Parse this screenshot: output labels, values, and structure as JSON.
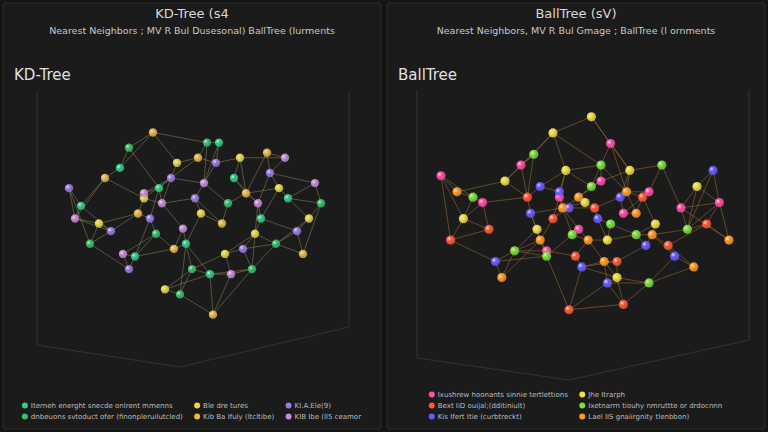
{
  "chart_data": [
    {
      "type": "scatter",
      "title": "KD-Tree (s4",
      "subtitle": "Nearest Neighbors ; MV R Bul Dusesonal) BallTree (Iurments",
      "annotations": [
        "KD-Tree"
      ],
      "xlim": [
        0,
        100
      ],
      "ylim": [
        0,
        100
      ],
      "tick_labels": false,
      "grid": false,
      "legend": "bottom",
      "marker": "circle",
      "series": [
        {
          "name": "Iterneh energht snecde onlrent mmenns",
          "color": "#35c98a",
          "x": [
            12,
            25,
            38,
            47,
            55,
            63,
            72,
            81,
            30,
            58
          ],
          "values": [
            55,
            70,
            62,
            40,
            28,
            66,
            50,
            58,
            35,
            80
          ]
        },
        {
          "name": "Ble dre tures",
          "color": "#e6d84a",
          "x": [
            18,
            33,
            44,
            52,
            60,
            70,
            78,
            88,
            40,
            65
          ],
          "values": [
            48,
            58,
            72,
            52,
            36,
            44,
            62,
            50,
            22,
            74
          ]
        },
        {
          "name": "KI.A.Ele(9)",
          "color": "#9b7be0",
          "x": [
            8,
            22,
            35,
            42,
            50,
            57,
            66,
            75,
            84,
            28
          ],
          "values": [
            62,
            45,
            50,
            66,
            58,
            72,
            38,
            68,
            45,
            30
          ]
        },
        {
          "name": "dnbeuons svtoduct ofer (finonpleruilutcled)",
          "color": "#3bbf6a",
          "x": [
            15,
            28,
            37,
            49,
            54,
            61,
            69,
            77,
            92,
            45
          ],
          "values": [
            40,
            78,
            44,
            30,
            80,
            56,
            30,
            40,
            56,
            20
          ]
        },
        {
          "name": "Kib Ba Ifuly (ltcltibe)",
          "color": "#e9b84a",
          "x": [
            20,
            31,
            43,
            51,
            59,
            67,
            74,
            86,
            36,
            56
          ],
          "values": [
            66,
            52,
            38,
            74,
            48,
            60,
            76,
            36,
            84,
            12
          ]
        },
        {
          "name": "KIB Ibe (ll5 ceamor",
          "color": "#c98ad8",
          "x": [
            10,
            26,
            39,
            46,
            53,
            62,
            71,
            80,
            90,
            33
          ],
          "values": [
            50,
            36,
            56,
            46,
            64,
            28,
            56,
            74,
            64,
            60
          ]
        }
      ]
    },
    {
      "type": "scatter",
      "title": "BallTree (sV)",
      "subtitle": "Nearest Neighbors, MV R Bul Gmage ; BallTree (l ornments",
      "annotations": [
        "BallTree"
      ],
      "xlim": [
        0,
        100
      ],
      "ylim": [
        0,
        100
      ],
      "tick_labels": false,
      "grid": false,
      "legend": "bottom",
      "marker": "circle",
      "series": [
        {
          "name": "Ixushrew hoonants sinnie tertlettions",
          "color": "#ff4fa8",
          "x": [
            5,
            18,
            30,
            42,
            48,
            55,
            62,
            70,
            80,
            92,
            38,
            58
          ],
          "values": [
            68,
            58,
            72,
            60,
            48,
            66,
            54,
            62,
            56,
            58,
            40,
            80
          ]
        },
        {
          "name": "Jhe Itrarph",
          "color": "#f0e040",
          "x": [
            12,
            25,
            35,
            44,
            50,
            57,
            64,
            72,
            85,
            40,
            60,
            52
          ],
          "values": [
            52,
            66,
            48,
            70,
            58,
            44,
            70,
            50,
            64,
            84,
            30,
            90
          ]
        },
        {
          "name": "Bext IiD ouijal;(dditiniult)",
          "color": "#ff5a3a",
          "x": [
            8,
            20,
            32,
            40,
            47,
            53,
            60,
            68,
            76,
            88,
            45,
            62
          ],
          "values": [
            44,
            48,
            60,
            52,
            38,
            56,
            36,
            60,
            42,
            50,
            18,
            20
          ]
        },
        {
          "name": "Ixetnarrn tiouhy nmruttte or drdocnnn",
          "color": "#7be03a",
          "x": [
            15,
            28,
            38,
            46,
            52,
            58,
            66,
            74,
            82,
            34,
            55,
            70
          ],
          "values": [
            60,
            40,
            38,
            46,
            64,
            50,
            46,
            72,
            48,
            76,
            72,
            28
          ]
        },
        {
          "name": "Kis Ifert Itie (curbtreckt)",
          "color": "#6a5cff",
          "x": [
            22,
            33,
            42,
            49,
            54,
            61,
            69,
            78,
            90,
            45,
            57,
            36
          ],
          "values": [
            36,
            54,
            62,
            34,
            52,
            60,
            42,
            38,
            70,
            56,
            28,
            64
          ]
        },
        {
          "name": "Lael IIS gnaiirgnity tlenbbon)",
          "color": "#ff9a2a",
          "x": [
            10,
            24,
            36,
            43,
            51,
            56,
            63,
            71,
            84,
            95,
            48,
            66
          ],
          "values": [
            62,
            30,
            44,
            56,
            44,
            36,
            62,
            46,
            34,
            44,
            60,
            54
          ]
        }
      ]
    }
  ]
}
